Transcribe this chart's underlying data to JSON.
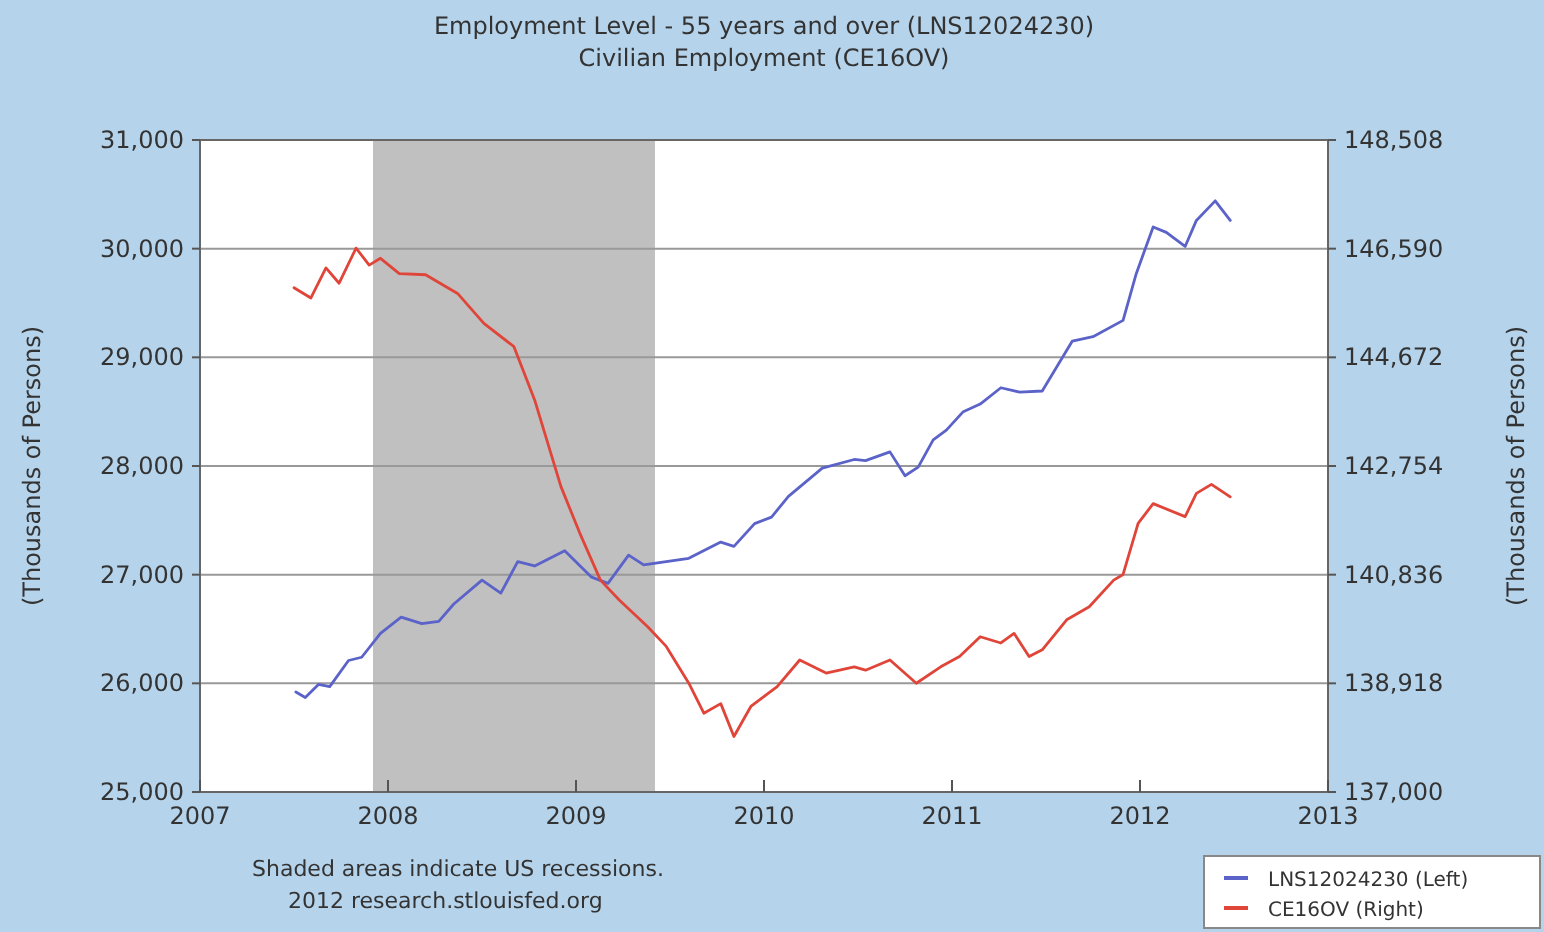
{
  "chart_data": {
    "type": "line",
    "title": "Employment Level - 55 years and over (LNS12024230)",
    "subtitle": "Civilian Employment (CE16OV)",
    "ylabel": "(Thousands of Persons)",
    "y2label": "(Thousands of Persons)",
    "xlim": [
      2007,
      2013
    ],
    "xticks": [
      2007,
      2008,
      2009,
      2010,
      2011,
      2012,
      2013
    ],
    "ylim": [
      25000,
      31000
    ],
    "yticks": [
      {
        "value": 25000,
        "label": "25,000"
      },
      {
        "value": 26000,
        "label": "26,000"
      },
      {
        "value": 27000,
        "label": "27,000"
      },
      {
        "value": 28000,
        "label": "28,000"
      },
      {
        "value": 29000,
        "label": "29,000"
      },
      {
        "value": 30000,
        "label": "30,000"
      },
      {
        "value": 31000,
        "label": "31,000"
      }
    ],
    "y2lim": [
      137000,
      148508
    ],
    "y2ticks": [
      {
        "value": 137000,
        "label": "137,000"
      },
      {
        "value": 138918,
        "label": "138,918"
      },
      {
        "value": 140836,
        "label": "140,836"
      },
      {
        "value": 142754,
        "label": "142,754"
      },
      {
        "value": 144672,
        "label": "144,672"
      },
      {
        "value": 146590,
        "label": "146,590"
      },
      {
        "value": 148508,
        "label": "148,508"
      }
    ],
    "grid": "y",
    "legend": "bottom right",
    "bands": [
      {
        "axis": "x",
        "from": 2007.92,
        "to": 2009.42,
        "color": "#c0c0c0"
      }
    ],
    "annotations": [
      "Shaded areas indicate US recessions.",
      "2012 research.stlouisfed.org"
    ],
    "series": [
      {
        "name": "LNS12024230 (Left)",
        "color": "#5b63c8",
        "x": [
          2007.51,
          2007.56,
          2007.63,
          2007.69,
          2007.79,
          2007.86,
          2007.96,
          2008.07,
          2008.18,
          2008.27,
          2008.35,
          2008.5,
          2008.6,
          2008.69,
          2008.78,
          2008.94,
          2009.08,
          2009.17,
          2009.28,
          2009.36,
          2009.6,
          2009.77,
          2009.84,
          2009.95,
          2010.04,
          2010.13,
          2010.31,
          2010.48,
          2010.54,
          2010.67,
          2010.75,
          2010.82,
          2010.9,
          2010.97,
          2011.06,
          2011.15,
          2011.26,
          2011.36,
          2011.48,
          2011.64,
          2011.75,
          2011.91,
          2011.98,
          2012.07,
          2012.14,
          2012.24,
          2012.3,
          2012.4,
          2012.48
        ],
        "values": [
          25920,
          25870,
          25990,
          25970,
          26210,
          26240,
          26460,
          26610,
          26550,
          26570,
          26730,
          26950,
          26830,
          27120,
          27080,
          27220,
          26980,
          26920,
          27180,
          27090,
          27150,
          27300,
          27260,
          27470,
          27530,
          27720,
          27980,
          28060,
          28050,
          28130,
          27910,
          27990,
          28240,
          28330,
          28500,
          28570,
          28720,
          28680,
          28690,
          29150,
          29190,
          29340,
          29770,
          30200,
          30150,
          30020,
          30260,
          30440,
          30260
        ]
      },
      {
        "name": "CE16OV (Right)",
        "color": "#e0453a",
        "axis": "y2",
        "x": [
          2007.5,
          2007.59,
          2007.67,
          2007.74,
          2007.83,
          2007.9,
          2007.96,
          2008.06,
          2008.2,
          2008.37,
          2008.51,
          2008.67,
          2008.78,
          2008.92,
          2009.02,
          2009.13,
          2009.23,
          2009.38,
          2009.48,
          2009.6,
          2009.68,
          2009.77,
          2009.84,
          2009.93,
          2010.07,
          2010.19,
          2010.33,
          2010.48,
          2010.54,
          2010.67,
          2010.81,
          2010.94,
          2011.04,
          2011.15,
          2011.26,
          2011.33,
          2011.41,
          2011.48,
          2011.61,
          2011.73,
          2011.86,
          2011.91,
          2011.99,
          2012.07,
          2012.24,
          2012.3,
          2012.38,
          2012.48
        ],
        "values": [
          145900,
          145720,
          146250,
          145980,
          146600,
          146300,
          146420,
          146150,
          146130,
          145800,
          145270,
          144860,
          143920,
          142390,
          141570,
          140740,
          140390,
          139920,
          139570,
          138920,
          138390,
          138560,
          137980,
          138510,
          138860,
          139330,
          139100,
          139210,
          139150,
          139330,
          138920,
          139210,
          139390,
          139740,
          139630,
          139800,
          139390,
          139510,
          140040,
          140270,
          140740,
          140840,
          141740,
          142090,
          141860,
          142270,
          142430,
          142210
        ]
      }
    ]
  }
}
